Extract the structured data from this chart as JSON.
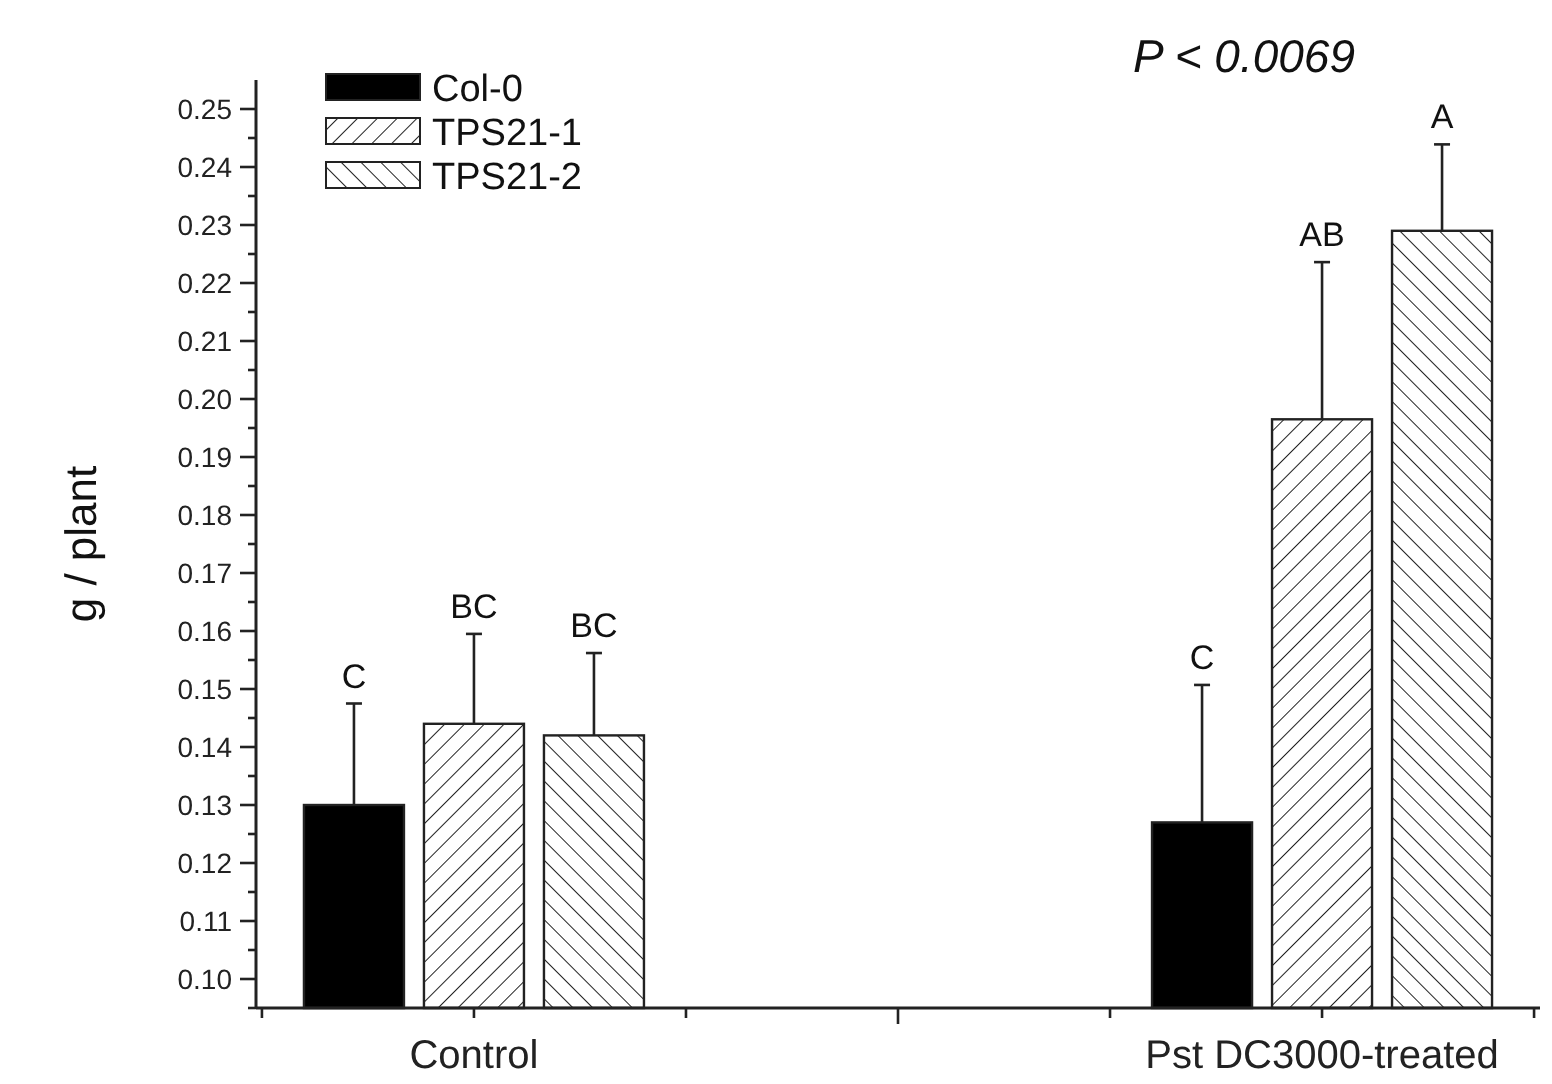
{
  "chart_data": {
    "type": "bar",
    "title": "P < 0.0069",
    "ylabel": "g / plant",
    "categories": [
      "Control",
      "Pst DC3000-treated"
    ],
    "series": [
      {
        "name": "Col-0",
        "color": "#000000",
        "values": [
          0.13,
          0.127
        ],
        "errors": [
          0.0175,
          0.0237
        ]
      },
      {
        "name": "TPS21-1",
        "color": "#222222",
        "values": [
          0.144,
          0.1965
        ],
        "errors": [
          0.0155,
          0.0271
        ]
      },
      {
        "name": "TPS21-2",
        "color": "#222222",
        "values": [
          0.142,
          0.229
        ],
        "errors": [
          0.0142,
          0.0149
        ]
      }
    ],
    "ylim": [
      0.095,
      0.255
    ],
    "yticks": [
      {
        "value": 0.095,
        "label": null
      },
      {
        "value": 0.1,
        "label": "0.10"
      },
      {
        "value": 0.105,
        "label": null
      },
      0.11,
      {
        "value": 0.115,
        "label": null
      },
      0.12,
      {
        "value": 0.125,
        "label": null
      },
      0.13,
      {
        "value": 0.135,
        "label": null
      },
      0.14,
      {
        "value": 0.145,
        "label": null
      },
      0.15,
      {
        "value": 0.155,
        "label": null
      },
      0.16,
      {
        "value": 0.165,
        "label": null
      },
      0.17,
      {
        "value": 0.175,
        "label": null
      },
      0.18,
      {
        "value": 0.185,
        "label": null
      },
      0.19,
      {
        "value": 0.195,
        "label": null
      },
      {
        "value": 0.2,
        "label": "0.20"
      },
      {
        "value": 0.205,
        "label": null
      },
      0.21,
      {
        "value": 0.215,
        "label": null
      },
      0.22,
      {
        "value": 0.225,
        "label": null
      },
      0.23,
      {
        "value": 0.235,
        "label": null
      },
      0.24,
      {
        "value": 0.245,
        "label": null
      },
      0.25
    ],
    "annotations": [
      "C",
      "BC",
      "BC",
      "C",
      "AB",
      "A"
    ],
    "legend": "top left",
    "grid": false
  }
}
